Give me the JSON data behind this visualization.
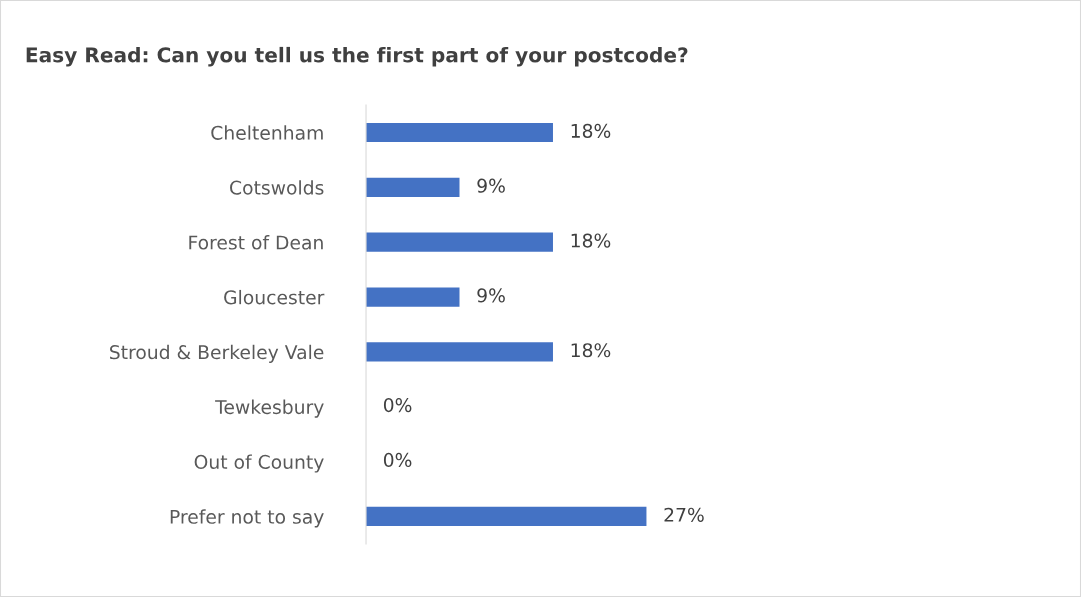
{
  "chart_data": {
    "type": "bar",
    "orientation": "horizontal",
    "title": "Easy Read: Can you tell us the first part of your postcode?",
    "categories": [
      "Cheltenham",
      "Cotswolds",
      "Forest of Dean",
      "Gloucester",
      "Stroud & Berkeley Vale",
      "Tewkesbury",
      "Out of County",
      "Prefer not to say"
    ],
    "values": [
      18,
      9,
      18,
      9,
      18,
      0,
      0,
      27
    ],
    "value_labels": [
      "18%",
      "9%",
      "18%",
      "9%",
      "18%",
      "0%",
      "0%",
      "27%"
    ],
    "color": "#4472c4",
    "grid": false,
    "legend": false
  }
}
